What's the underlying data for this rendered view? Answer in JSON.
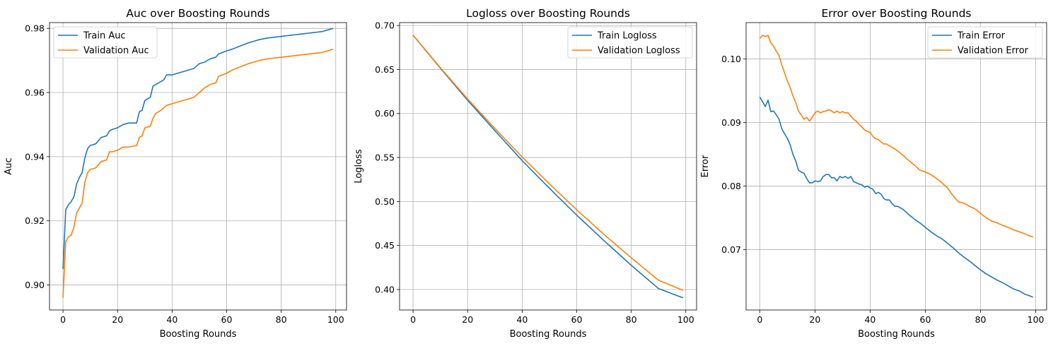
{
  "colors": {
    "train": "#1f77b4",
    "validation": "#ff7f0e",
    "grid": "#b0b0b0"
  },
  "chart_data": [
    {
      "type": "line",
      "title": "Auc over Boosting Rounds",
      "xlabel": "Boosting Rounds",
      "ylabel": "Auc",
      "xlim": [
        -4.95,
        103.95
      ],
      "ylim": [
        0.8922,
        0.9818
      ],
      "xticks": [
        0,
        20,
        40,
        60,
        80,
        100
      ],
      "xtick_labels": [
        "0",
        "20",
        "40",
        "60",
        "80",
        "100"
      ],
      "yticks": [
        0.9,
        0.92,
        0.94,
        0.96,
        0.98
      ],
      "ytick_labels": [
        "0.90",
        "0.92",
        "0.94",
        "0.96",
        "0.98"
      ],
      "grid": true,
      "legend_position": "upper left",
      "x_range": [
        0,
        99
      ],
      "series": [
        {
          "name": "Train Auc",
          "color": "train",
          "knots_x": [
            0,
            1,
            2,
            3,
            4,
            5,
            6,
            7,
            8,
            9,
            10,
            12,
            14,
            16,
            17,
            18,
            20,
            22,
            24,
            27,
            28,
            29,
            30,
            31,
            32,
            33,
            35,
            37,
            38,
            40,
            42,
            44,
            46,
            48,
            50,
            52,
            54,
            56,
            57,
            60,
            62,
            65,
            68,
            70,
            72,
            75,
            80,
            85,
            90,
            95,
            99
          ],
          "knots_y": [
            0.905,
            0.9235,
            0.925,
            0.926,
            0.9275,
            0.9315,
            0.9335,
            0.935,
            0.9395,
            0.9425,
            0.9435,
            0.944,
            0.946,
            0.9465,
            0.948,
            0.9485,
            0.949,
            0.95,
            0.9505,
            0.9505,
            0.954,
            0.9545,
            0.9575,
            0.958,
            0.9585,
            0.962,
            0.963,
            0.964,
            0.9655,
            0.9655,
            0.966,
            0.9665,
            0.967,
            0.9675,
            0.969,
            0.9695,
            0.9705,
            0.971,
            0.972,
            0.973,
            0.9735,
            0.9745,
            0.9755,
            0.976,
            0.9765,
            0.977,
            0.9775,
            0.978,
            0.9785,
            0.979,
            0.98
          ]
        },
        {
          "name": "Validation Auc",
          "color": "validation",
          "knots_x": [
            0,
            1,
            2,
            3,
            4,
            5,
            6,
            7,
            8,
            9,
            10,
            12,
            14,
            16,
            17,
            18,
            20,
            22,
            24,
            27,
            28,
            29,
            30,
            32,
            33,
            34,
            35,
            36,
            38,
            40,
            42,
            44,
            46,
            48,
            50,
            52,
            54,
            56,
            57,
            60,
            62,
            65,
            68,
            70,
            72,
            75,
            80,
            85,
            90,
            95,
            99
          ],
          "knots_y": [
            0.896,
            0.9135,
            0.915,
            0.9155,
            0.918,
            0.9225,
            0.924,
            0.9255,
            0.932,
            0.935,
            0.936,
            0.9365,
            0.9385,
            0.939,
            0.9415,
            0.9415,
            0.942,
            0.943,
            0.943,
            0.9435,
            0.946,
            0.9465,
            0.949,
            0.9495,
            0.952,
            0.9535,
            0.954,
            0.9545,
            0.956,
            0.9565,
            0.957,
            0.9575,
            0.958,
            0.9585,
            0.96,
            0.9615,
            0.9625,
            0.963,
            0.965,
            0.966,
            0.967,
            0.968,
            0.969,
            0.9695,
            0.97,
            0.9705,
            0.971,
            0.9715,
            0.972,
            0.9725,
            0.9735
          ]
        }
      ]
    },
    {
      "type": "line",
      "title": "Logloss over Boosting Rounds",
      "xlabel": "Boosting Rounds",
      "ylabel": "Logloss",
      "xlim": [
        -4.95,
        103.95
      ],
      "ylim": [
        0.3767,
        0.7033
      ],
      "xticks": [
        0,
        20,
        40,
        60,
        80,
        100
      ],
      "xtick_labels": [
        "0",
        "20",
        "40",
        "60",
        "80",
        "100"
      ],
      "yticks": [
        0.4,
        0.45,
        0.5,
        0.55,
        0.6,
        0.65,
        0.7
      ],
      "ytick_labels": [
        "0.40",
        "0.45",
        "0.50",
        "0.55",
        "0.60",
        "0.65",
        "0.70"
      ],
      "grid": true,
      "legend_position": "upper right",
      "x_range": [
        0,
        99
      ],
      "series": [
        {
          "name": "Train Logloss",
          "color": "train",
          "knots_x": [
            0,
            10,
            20,
            30,
            40,
            50,
            60,
            70,
            80,
            90,
            99
          ],
          "knots_y": [
            0.689,
            0.6515,
            0.615,
            0.5805,
            0.5465,
            0.515,
            0.4845,
            0.4555,
            0.4275,
            0.401,
            0.3905
          ]
        },
        {
          "name": "Validation Logloss",
          "color": "validation",
          "knots_x": [
            0,
            10,
            20,
            30,
            40,
            50,
            60,
            70,
            80,
            90,
            99
          ],
          "knots_y": [
            0.689,
            0.652,
            0.6165,
            0.583,
            0.5505,
            0.52,
            0.4905,
            0.4625,
            0.436,
            0.4105,
            0.399
          ]
        }
      ]
    },
    {
      "type": "line",
      "title": "Error over Boosting Rounds",
      "xlabel": "Boosting Rounds",
      "ylabel": "Error",
      "xlim": [
        -4.95,
        103.95
      ],
      "ylim": [
        0.0605,
        0.1057
      ],
      "xticks": [
        0,
        20,
        40,
        60,
        80,
        100
      ],
      "xtick_labels": [
        "0",
        "20",
        "40",
        "60",
        "80",
        "100"
      ],
      "yticks": [
        0.07,
        0.08,
        0.09,
        0.1
      ],
      "ytick_labels": [
        "0.07",
        "0.08",
        "0.09",
        "0.10"
      ],
      "grid": true,
      "legend_position": "upper right",
      "x_range": [
        0,
        99
      ],
      "series": [
        {
          "name": "Train Error",
          "color": "train",
          "knots_x": [
            0,
            1,
            2,
            3,
            4,
            5,
            6,
            7,
            8,
            9,
            10,
            11,
            12,
            13,
            14,
            15,
            16,
            17,
            18,
            19,
            20,
            21,
            22,
            23,
            24,
            25,
            26,
            27,
            28,
            29,
            30,
            31,
            32,
            33,
            34,
            35,
            36,
            37,
            38,
            39,
            40,
            41,
            42,
            43,
            44,
            45,
            46,
            47,
            48,
            49,
            50,
            52,
            54,
            56,
            58,
            60,
            62,
            64,
            66,
            68,
            70,
            72,
            74,
            76,
            78,
            80,
            82,
            84,
            86,
            88,
            90,
            92,
            94,
            96,
            98,
            99
          ],
          "knots_y": [
            0.094,
            0.0933,
            0.0925,
            0.0935,
            0.0917,
            0.0918,
            0.0912,
            0.0905,
            0.089,
            0.0882,
            0.0875,
            0.0865,
            0.085,
            0.084,
            0.0825,
            0.0822,
            0.082,
            0.0812,
            0.0805,
            0.0805,
            0.0808,
            0.0807,
            0.0808,
            0.0815,
            0.0818,
            0.0818,
            0.0813,
            0.0813,
            0.0808,
            0.0815,
            0.0813,
            0.0815,
            0.0812,
            0.0815,
            0.0807,
            0.0805,
            0.0803,
            0.0802,
            0.0798,
            0.08,
            0.0797,
            0.0795,
            0.0788,
            0.079,
            0.0787,
            0.078,
            0.0778,
            0.0778,
            0.0772,
            0.0768,
            0.0768,
            0.0763,
            0.0755,
            0.0748,
            0.0742,
            0.0735,
            0.0728,
            0.0722,
            0.0717,
            0.071,
            0.0703,
            0.0695,
            0.0688,
            0.0682,
            0.0675,
            0.0668,
            0.0662,
            0.0657,
            0.0652,
            0.0648,
            0.0643,
            0.0638,
            0.0635,
            0.063,
            0.0627,
            0.0625
          ]
        },
        {
          "name": "Validation Error",
          "color": "validation",
          "knots_x": [
            0,
            1,
            2,
            3,
            4,
            5,
            6,
            7,
            8,
            9,
            10,
            11,
            12,
            13,
            14,
            15,
            16,
            17,
            18,
            19,
            20,
            21,
            22,
            23,
            24,
            25,
            26,
            27,
            28,
            29,
            30,
            31,
            32,
            33,
            34,
            35,
            36,
            37,
            38,
            39,
            40,
            41,
            42,
            43,
            44,
            45,
            46,
            47,
            48,
            49,
            50,
            52,
            54,
            56,
            58,
            60,
            62,
            64,
            66,
            68,
            70,
            72,
            74,
            76,
            78,
            80,
            82,
            84,
            86,
            88,
            90,
            92,
            94,
            96,
            98,
            99
          ],
          "knots_y": [
            0.1032,
            0.1037,
            0.1035,
            0.1037,
            0.1025,
            0.102,
            0.1012,
            0.1005,
            0.099,
            0.0978,
            0.0965,
            0.0955,
            0.0942,
            0.0932,
            0.0918,
            0.0912,
            0.0905,
            0.0908,
            0.0902,
            0.0908,
            0.0915,
            0.0918,
            0.0915,
            0.0917,
            0.0918,
            0.092,
            0.0918,
            0.0915,
            0.0918,
            0.0915,
            0.0917,
            0.0915,
            0.0915,
            0.091,
            0.0905,
            0.0902,
            0.0897,
            0.0893,
            0.0888,
            0.0886,
            0.0884,
            0.0878,
            0.0874,
            0.0873,
            0.0869,
            0.0866,
            0.0866,
            0.0863,
            0.0861,
            0.0858,
            0.0855,
            0.0848,
            0.084,
            0.0833,
            0.0825,
            0.0822,
            0.0818,
            0.0812,
            0.0805,
            0.0797,
            0.0785,
            0.0775,
            0.0773,
            0.0768,
            0.0764,
            0.0757,
            0.075,
            0.0745,
            0.0742,
            0.0738,
            0.0735,
            0.0731,
            0.0728,
            0.0725,
            0.0721,
            0.072
          ]
        }
      ]
    }
  ]
}
